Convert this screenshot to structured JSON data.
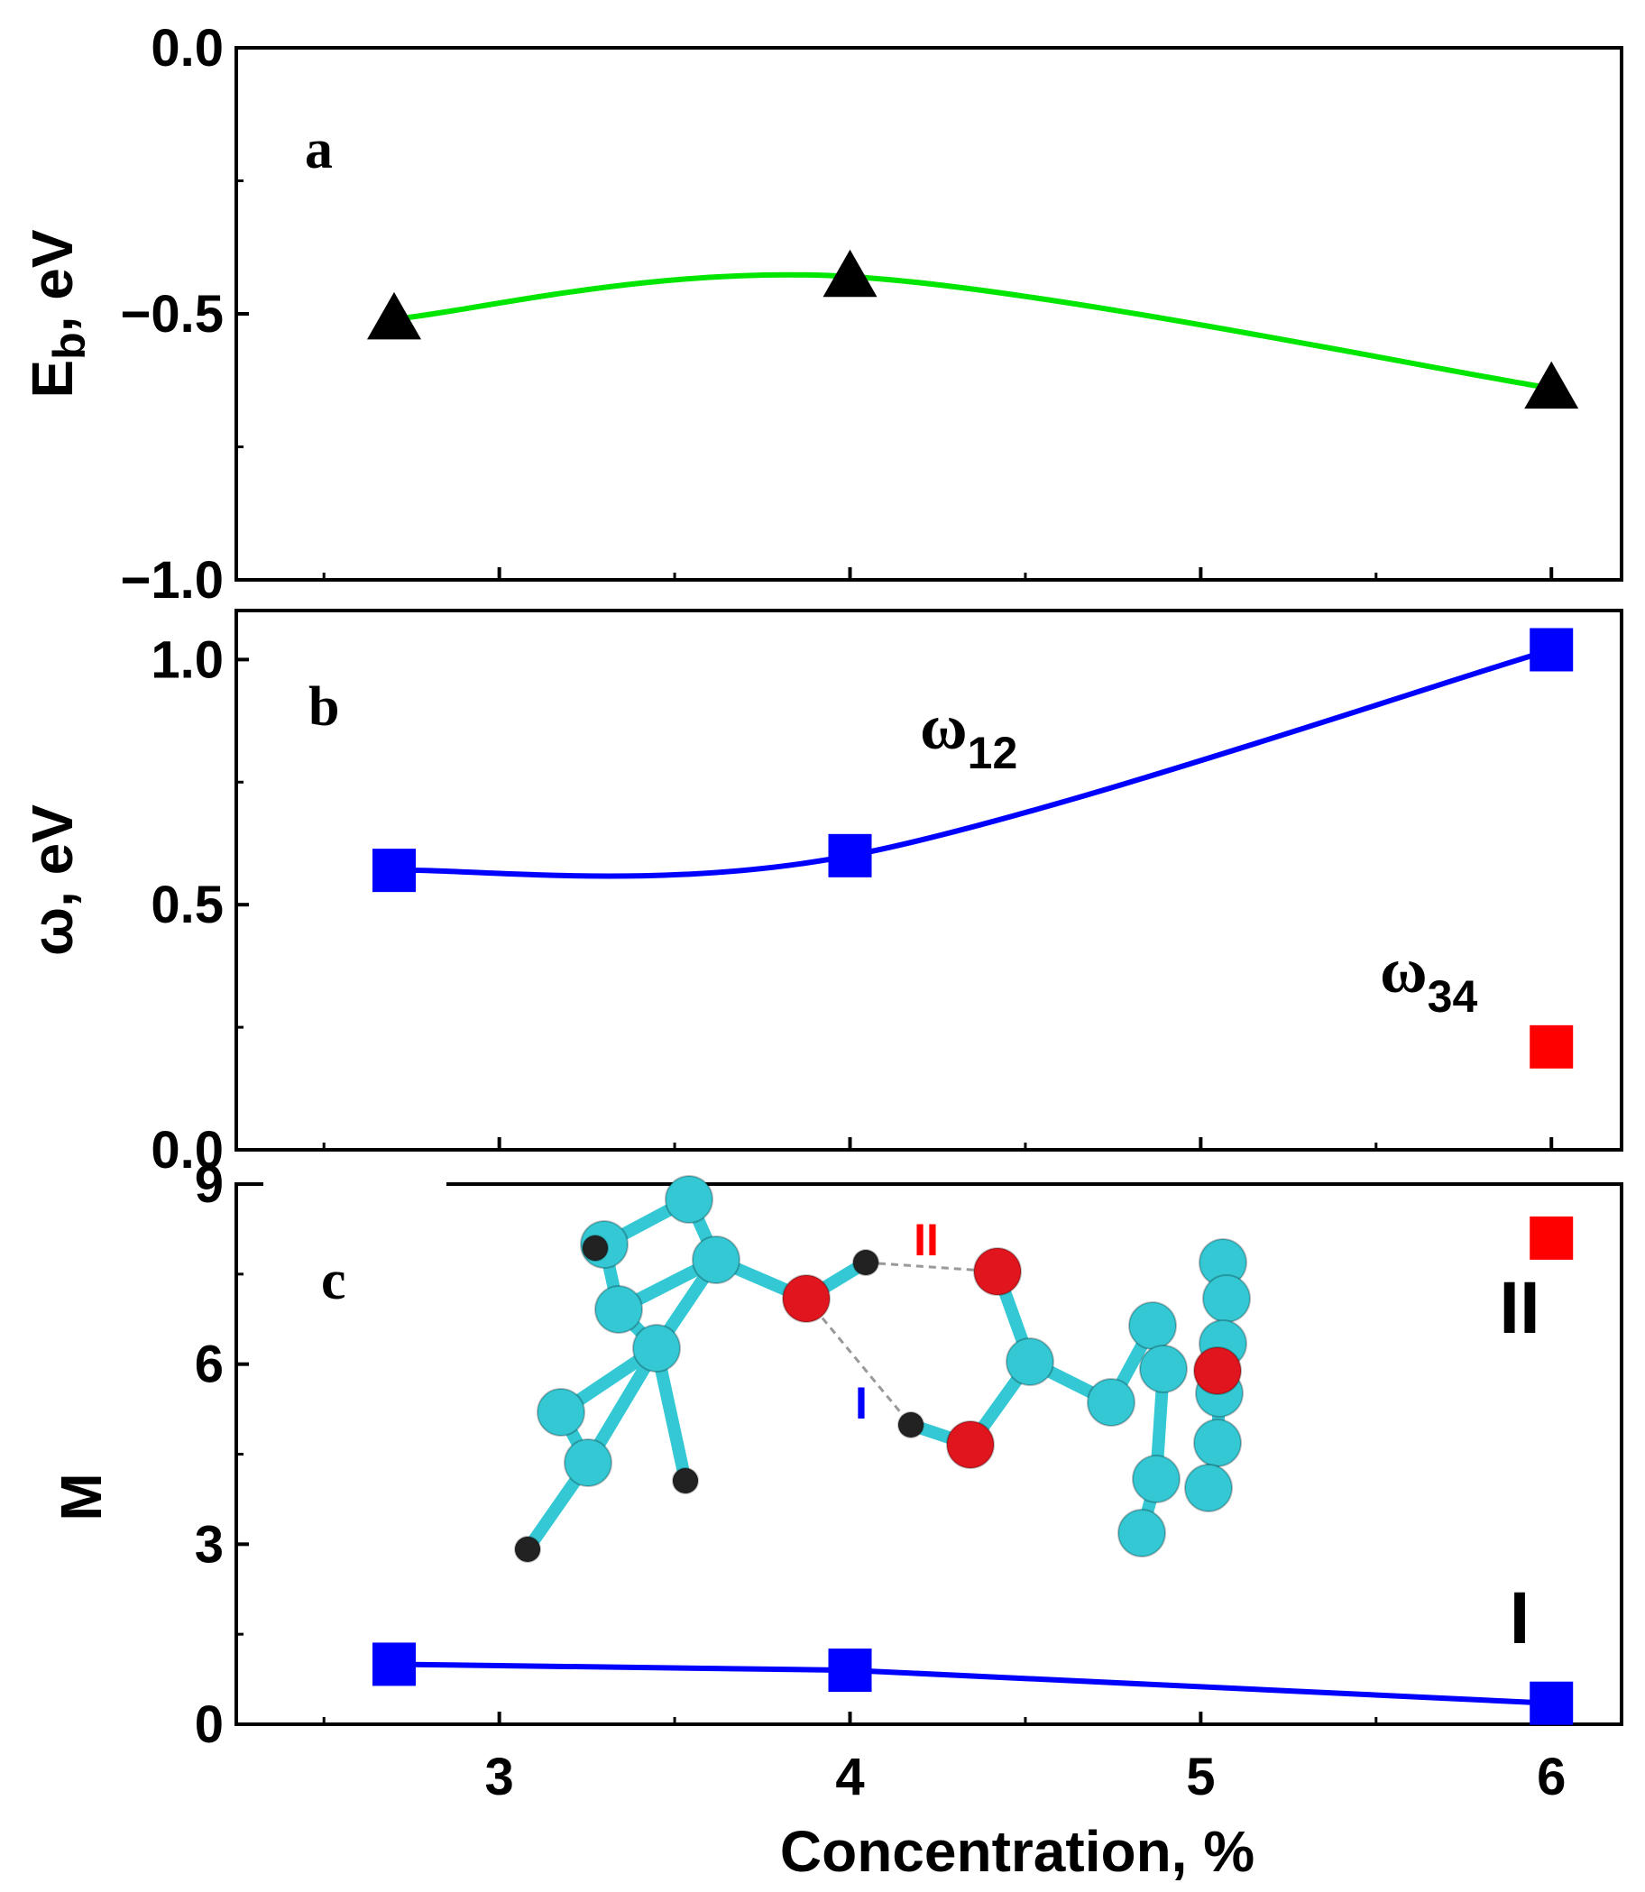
{
  "chart_data": [
    {
      "panel": "a",
      "type": "line",
      "ylabel_main": "E",
      "ylabel_sub": "b",
      "ylabel_rest": ", eV",
      "ylim": [
        -1.0,
        0.0
      ],
      "yticks": [
        "0.0",
        "−0.5",
        "−1.0"
      ],
      "x": [
        2.7,
        4.0,
        6.0
      ],
      "series": [
        {
          "name": "Eb",
          "values": [
            -0.51,
            -0.43,
            -0.64
          ],
          "color": "#00e600",
          "marker": "triangle",
          "marker_color": "#000000"
        }
      ]
    },
    {
      "panel": "b",
      "type": "line",
      "ylabel": "ω, eV",
      "ylim": [
        0.0,
        1.1
      ],
      "yticks": [
        "0.0",
        "0.5",
        "1.0"
      ],
      "x": [
        2.7,
        4.0,
        6.0
      ],
      "series": [
        {
          "name": "ω12",
          "label_main": "ω",
          "label_sub": "12",
          "values": [
            0.57,
            0.6,
            1.02
          ],
          "color": "#0000ff",
          "marker": "square"
        },
        {
          "name": "ω34",
          "label_main": "ω",
          "label_sub": "34",
          "x": [
            6.0
          ],
          "values": [
            0.21
          ],
          "color": "#ff0000",
          "marker": "square"
        }
      ]
    },
    {
      "panel": "c",
      "type": "line",
      "ylabel": "M",
      "xlabel": "Concentration, %",
      "ylim": [
        0,
        9
      ],
      "yticks": [
        "0",
        "3",
        "6",
        "9"
      ],
      "xlim": [
        2.25,
        6.2
      ],
      "xticks": [
        "3",
        "4",
        "5",
        "6"
      ],
      "x": [
        2.7,
        4.0,
        6.0
      ],
      "series": [
        {
          "name": "I",
          "values": [
            1.0,
            0.9,
            0.35
          ],
          "color": "#0000ff",
          "marker": "square"
        },
        {
          "name": "II",
          "x": [
            6.0
          ],
          "values": [
            8.1
          ],
          "color": "#ff0000",
          "marker": "square"
        }
      ],
      "annotations": {
        "bond_I": "I",
        "bond_II": "II",
        "inset_I": "I",
        "inset_II": "II"
      }
    }
  ]
}
